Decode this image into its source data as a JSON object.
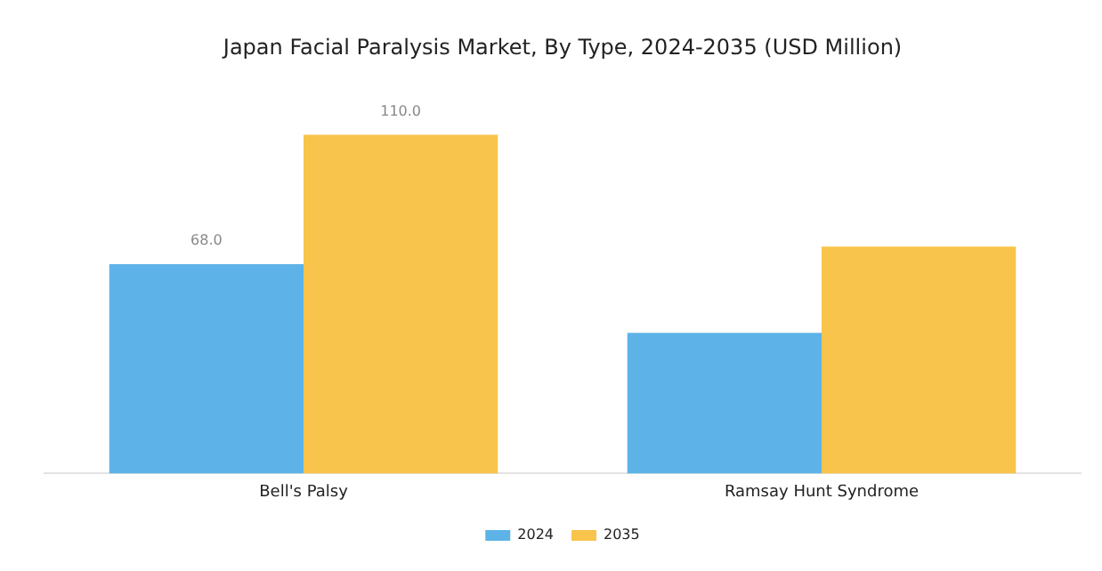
{
  "chart_data": {
    "type": "bar",
    "title": "Japan Facial Paralysis Market, By Type, 2024-2035 (USD Million)",
    "categories": [
      "Bell's Palsy",
      "Ramsay Hunt Syndrome"
    ],
    "series": [
      {
        "name": "2024",
        "color": "#5db3e8",
        "values": [
          68.0,
          45.7
        ],
        "value_labels": [
          "68.0",
          null
        ]
      },
      {
        "name": "2035",
        "color": "#f8c44b",
        "values": [
          110.0,
          73.7
        ],
        "value_labels": [
          "110.0",
          null
        ]
      }
    ],
    "grid": false,
    "legend": "bottom"
  }
}
